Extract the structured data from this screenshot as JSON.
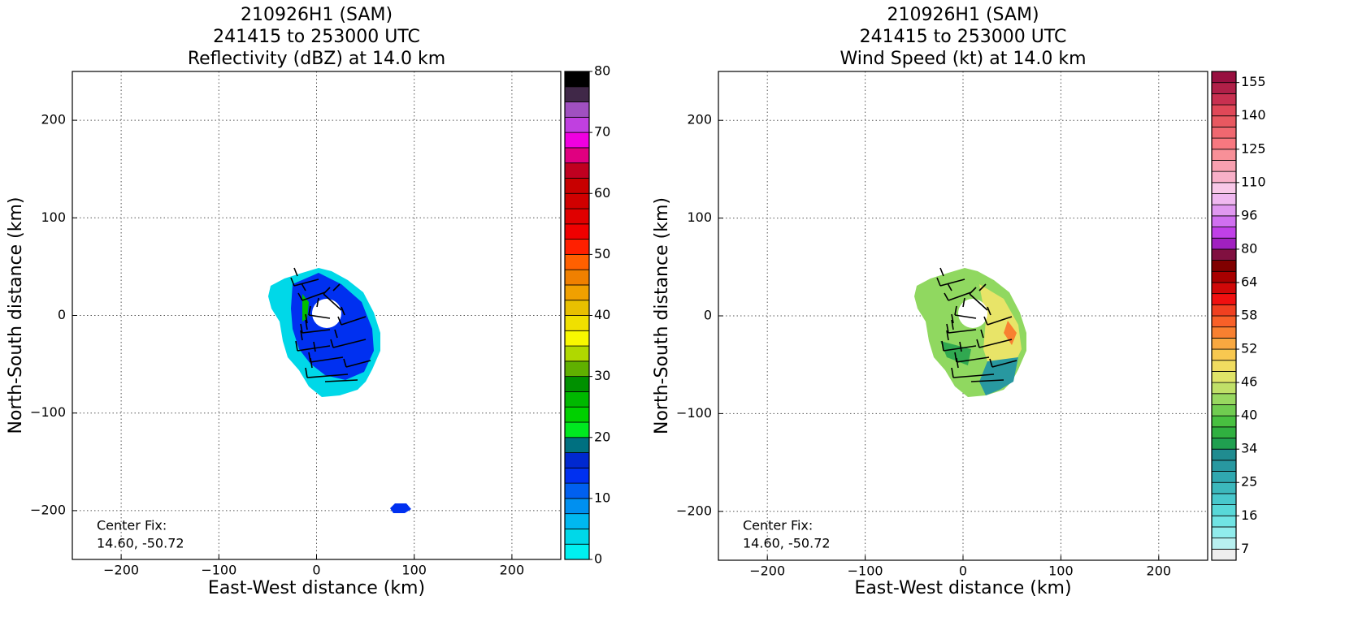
{
  "chart_data": [
    {
      "type": "contourf",
      "title": [
        "210926H1 (SAM)",
        "241415 to 253000 UTC",
        "Reflectivity (dBZ) at 14.0 km"
      ],
      "xlabel": "East-West distance (km)",
      "ylabel": "North-South distance (km)",
      "xlim": [
        -250,
        250
      ],
      "ylim": [
        -250,
        250
      ],
      "xticks": [
        {
          "value": -200,
          "label": "−200"
        },
        {
          "value": -100,
          "label": "−100"
        },
        0,
        100,
        200
      ],
      "yticks": [
        {
          "value": -200,
          "label": "−200"
        },
        {
          "value": -100,
          "label": "−100"
        },
        0,
        100,
        200
      ],
      "grid": true,
      "annotation": [
        "Center Fix:",
        "14.60, -50.72"
      ],
      "colorbar": {
        "lim": [
          0,
          80
        ],
        "ticks": [
          0,
          10,
          20,
          30,
          40,
          50,
          60,
          70,
          80
        ],
        "colors": [
          "#00f0f0",
          "#00d8e8",
          "#00b8f0",
          "#0090f0",
          "#0060f0",
          "#0030f0",
          "#0028d0",
          "#007080",
          "#00e820",
          "#00d000",
          "#00b800",
          "#009000",
          "#60b000",
          "#b0d800",
          "#f8f800",
          "#f0e000",
          "#e8c000",
          "#f0a000",
          "#f08000",
          "#ff6000",
          "#ff2000",
          "#f00000",
          "#e00000",
          "#d00000",
          "#c80000",
          "#c00020",
          "#e00080",
          "#f000e0",
          "#c040e0",
          "#a050c0",
          "#402848",
          "#000000"
        ]
      }
    },
    {
      "type": "contourf",
      "title": [
        "210926H1 (SAM)",
        "241415 to 253000 UTC",
        "Wind Speed (kt) at 14.0 km"
      ],
      "xlabel": "East-West distance (km)",
      "ylabel": "North-South distance (km)",
      "xlim": [
        -250,
        250
      ],
      "ylim": [
        -250,
        250
      ],
      "xticks": [
        {
          "value": -200,
          "label": "−200"
        },
        {
          "value": -100,
          "label": "−100"
        },
        0,
        100,
        200
      ],
      "yticks": [
        {
          "value": -200,
          "label": "−200"
        },
        {
          "value": -100,
          "label": "−100"
        },
        0,
        100,
        200
      ],
      "grid": true,
      "annotation": [
        "Center Fix:",
        "14.60, -50.72"
      ],
      "colorbar": {
        "ticks": [
          7,
          16,
          25,
          34,
          40,
          46,
          52,
          58,
          64,
          80,
          96,
          110,
          125,
          140,
          155
        ],
        "colors": [
          "#eeeeee",
          "#b8f0f0",
          "#90ecec",
          "#70e4e4",
          "#58d8d8",
          "#48c8cc",
          "#3cb8bc",
          "#30a8b0",
          "#2898a0",
          "#208c90",
          "#20a050",
          "#30b040",
          "#48c040",
          "#70cc50",
          "#98d860",
          "#c0e068",
          "#e0e468",
          "#f0dc60",
          "#f8c850",
          "#f8a840",
          "#f88030",
          "#f86028",
          "#f04020",
          "#f01010",
          "#d00808",
          "#a80000",
          "#800000",
          "#801040",
          "#a020c0",
          "#c040e8",
          "#d070f0",
          "#e098f0",
          "#f0b8f0",
          "#f8c8e8",
          "#f8b0c8",
          "#f8a0b0",
          "#f89098",
          "#f87880",
          "#f06870",
          "#e85860",
          "#e04858",
          "#c83050",
          "#b02048",
          "#981040"
        ]
      }
    }
  ]
}
